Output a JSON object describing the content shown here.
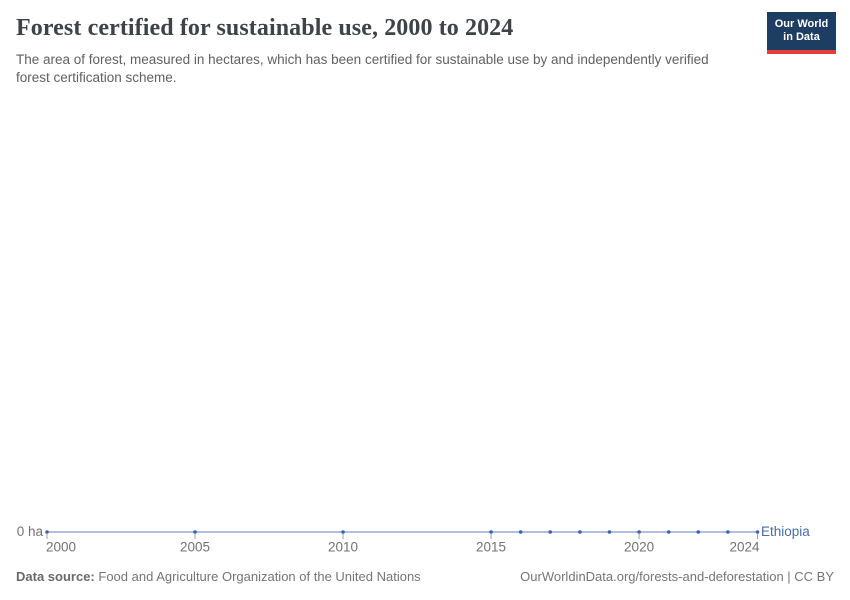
{
  "header": {
    "title": "Forest certified for sustainable use, 2000 to 2024",
    "subtitle": "The area of forest, measured in hectares, which has been certified for sustainable use by and independently verified forest certification scheme.",
    "logo": {
      "line1": "Our World",
      "line2": "in Data",
      "bg_color": "#1d3d63",
      "accent_color": "#e04038"
    }
  },
  "chart_data": {
    "type": "line",
    "title": "Forest certified for sustainable use, 2000 to 2024",
    "unit": "ha",
    "x": [
      2000,
      2005,
      2010,
      2015,
      2016,
      2017,
      2018,
      2019,
      2020,
      2021,
      2022,
      2023,
      2024
    ],
    "series": [
      {
        "name": "Ethiopia",
        "values": [
          0,
          0,
          0,
          0,
          0,
          0,
          0,
          0,
          0,
          0,
          0,
          0,
          0
        ],
        "color": "#3d62ad"
      }
    ],
    "xlim": [
      2000,
      2024
    ],
    "ylim": [
      0,
      0
    ],
    "x_ticks": [
      2000,
      2005,
      2010,
      2015,
      2020,
      2024
    ],
    "x_tick_labels": [
      "2000",
      "2005",
      "2010",
      "2015",
      "2020",
      "2024"
    ],
    "y_tick_labels": [
      "0 ha"
    ],
    "grid": false,
    "legend_position": "line-end"
  },
  "colors": {
    "line": "#a6b7d8",
    "marker": "#3d62ad",
    "entity_label": "#4a6bac",
    "tick": "#9aa3b3",
    "axis_text": "#737373"
  },
  "footer": {
    "source_label": "Data source:",
    "source_text": "Food and Agriculture Organization of the United Nations",
    "link_text": "OurWorldinData.org/forests-and-deforestation | CC BY"
  }
}
